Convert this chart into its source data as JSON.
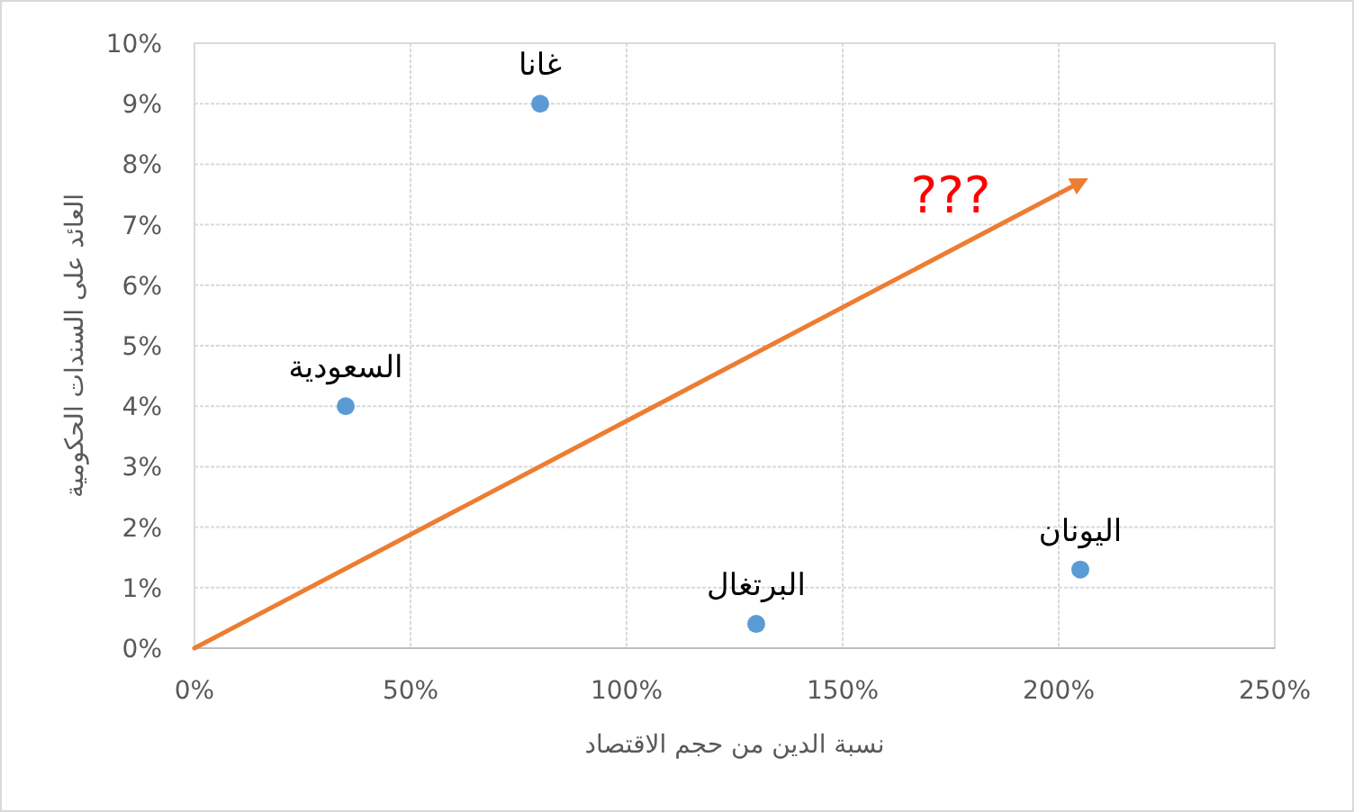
{
  "chart_data": {
    "type": "scatter",
    "xlabel": "نسبة الدين من حجم الاقتصاد",
    "ylabel": "العائد على السندات الحكومية",
    "series": [
      {
        "color": "#5b9bd5",
        "marker": "circle",
        "x": [
          80,
          35,
          130,
          205
        ],
        "values": [
          9.0,
          4.0,
          0.4,
          1.3
        ]
      },
      {
        "type": "line",
        "color": "#ed7d31",
        "marker": "none",
        "x": [
          0,
          205
        ],
        "values": [
          0,
          7.7
        ]
      }
    ],
    "annotations": [
      {
        "text": "غانا",
        "x": 80,
        "y": 9.0
      },
      {
        "text": "السعودية",
        "x": 35,
        "y": 4.0
      },
      {
        "text": "البرتغال",
        "x": 130,
        "y": 0.4
      },
      {
        "text": "اليونان",
        "x": 205,
        "y": 1.3
      },
      "???"
    ],
    "xlim": [
      0,
      250
    ],
    "xticks": [
      {
        "value": 0,
        "label": "0%"
      },
      {
        "value": 50,
        "label": "50%"
      },
      {
        "value": 100,
        "label": "100%"
      },
      {
        "value": 150,
        "label": "150%"
      },
      {
        "value": 200,
        "label": "200%"
      },
      {
        "value": 250,
        "label": "250%"
      }
    ],
    "ylim": [
      0,
      10
    ],
    "yticks": [
      {
        "value": 0,
        "label": "0%"
      },
      {
        "value": 1,
        "label": "1%"
      },
      {
        "value": 2,
        "label": "2%"
      },
      {
        "value": 3,
        "label": "3%"
      },
      {
        "value": 4,
        "label": "4%"
      },
      {
        "value": 5,
        "label": "5%"
      },
      {
        "value": 6,
        "label": "6%"
      },
      {
        "value": 7,
        "label": "7%"
      },
      {
        "value": 8,
        "label": "8%"
      },
      {
        "value": 9,
        "label": "9%"
      },
      {
        "value": 10,
        "label": "10%"
      }
    ],
    "grid": true
  }
}
